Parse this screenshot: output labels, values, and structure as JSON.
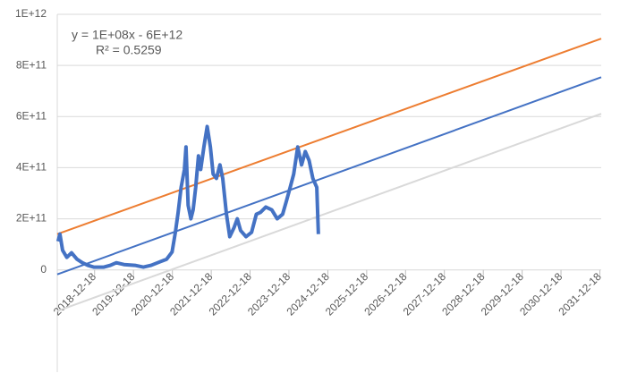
{
  "chart_data": {
    "type": "line",
    "annotations": [
      "y = 1E+08x - 6E+12",
      "R² = 0.5259"
    ],
    "xlim": [
      "2018-01-01",
      "2031-12-31"
    ],
    "xticks": [
      "2018-12-18",
      "2019-12-18",
      "2020-12-18",
      "2021-12-18",
      "2022-12-18",
      "2023-12-18",
      "2024-12-18",
      "2025-12-18",
      "2026-12-18",
      "2027-12-18",
      "2028-12-18",
      "2029-12-18",
      "2030-12-18",
      "2031-12-18"
    ],
    "ylim": [
      -400000000000,
      1000000000000
    ],
    "yticks": [
      0,
      {
        "value": 200000000000,
        "label": "2E+11"
      },
      {
        "value": 400000000000,
        "label": "4E+11"
      },
      {
        "value": 600000000000,
        "label": "6E+11"
      },
      {
        "value": 800000000000,
        "label": "8E+11"
      },
      {
        "value": 1000000000000,
        "label": "1E+12"
      }
    ],
    "grid": true,
    "series": [
      {
        "color": "#d9d9d9",
        "width": 2,
        "x": [
          "2018-01-01",
          "2031-12-31"
        ],
        "values": [
          -161000000000,
          611000000000
        ]
      },
      {
        "color": "#ed7d31",
        "width": 2,
        "x": [
          "2018-01-01",
          "2031-12-31"
        ],
        "values": [
          140000000000,
          905000000000
        ]
      },
      {
        "color": "#4472c4",
        "width": 2,
        "x": [
          "2018-01-01",
          "2031-12-31"
        ],
        "values": [
          -17500000000,
          754000000000
        ]
      },
      {
        "color": "#4472c4",
        "width": 4,
        "x": [
          "2018-01-08",
          "2018-01-26",
          "2018-02-20",
          "2018-04-01",
          "2018-05-15",
          "2018-07-05",
          "2018-08-25",
          "2018-10-15",
          "2018-12-10",
          "2019-03-15",
          "2019-05-15",
          "2019-07-10",
          "2019-09-20",
          "2020-01-01",
          "2020-03-20",
          "2020-06-01",
          "2020-08-25",
          "2020-10-25",
          "2020-12-15",
          "2021-01-15",
          "2021-02-10",
          "2021-03-10",
          "2021-04-10",
          "2021-04-25",
          "2021-05-15",
          "2021-06-10",
          "2021-07-01",
          "2021-07-25",
          "2021-08-20",
          "2021-09-10",
          "2021-10-10",
          "2021-11-10",
          "2021-12-10",
          "2022-01-05",
          "2022-02-05",
          "2022-03-10",
          "2022-04-05",
          "2022-05-10",
          "2022-06-10",
          "2022-07-20",
          "2022-08-20",
          "2022-09-20",
          "2022-11-10",
          "2023-01-01",
          "2023-02-15",
          "2023-03-25",
          "2023-05-15",
          "2023-07-10",
          "2023-08-30",
          "2023-10-20",
          "2023-11-25",
          "2023-12-30",
          "2024-02-01",
          "2024-03-10",
          "2024-04-15",
          "2024-05-20",
          "2024-06-25",
          "2024-07-30",
          "2024-09-05",
          "2024-09-20"
        ],
        "values": [
          112000000000,
          140000000000,
          77000000000,
          49000000000,
          67000000000,
          42000000000,
          28000000000,
          18000000000,
          11000000000,
          11000000000,
          18000000000,
          28000000000,
          21000000000,
          18000000000,
          11000000000,
          18000000000,
          32000000000,
          42000000000,
          70000000000,
          147000000000,
          225000000000,
          323000000000,
          393000000000,
          481000000000,
          253000000000,
          200000000000,
          235000000000,
          323000000000,
          446000000000,
          393000000000,
          481000000000,
          561000000000,
          481000000000,
          375000000000,
          358000000000,
          411000000000,
          358000000000,
          218000000000,
          130000000000,
          165000000000,
          200000000000,
          154000000000,
          130000000000,
          147000000000,
          218000000000,
          225000000000,
          246000000000,
          235000000000,
          200000000000,
          218000000000,
          270000000000,
          323000000000,
          375000000000,
          481000000000,
          411000000000,
          463000000000,
          428000000000,
          358000000000,
          323000000000,
          140000000000
        ]
      }
    ]
  }
}
